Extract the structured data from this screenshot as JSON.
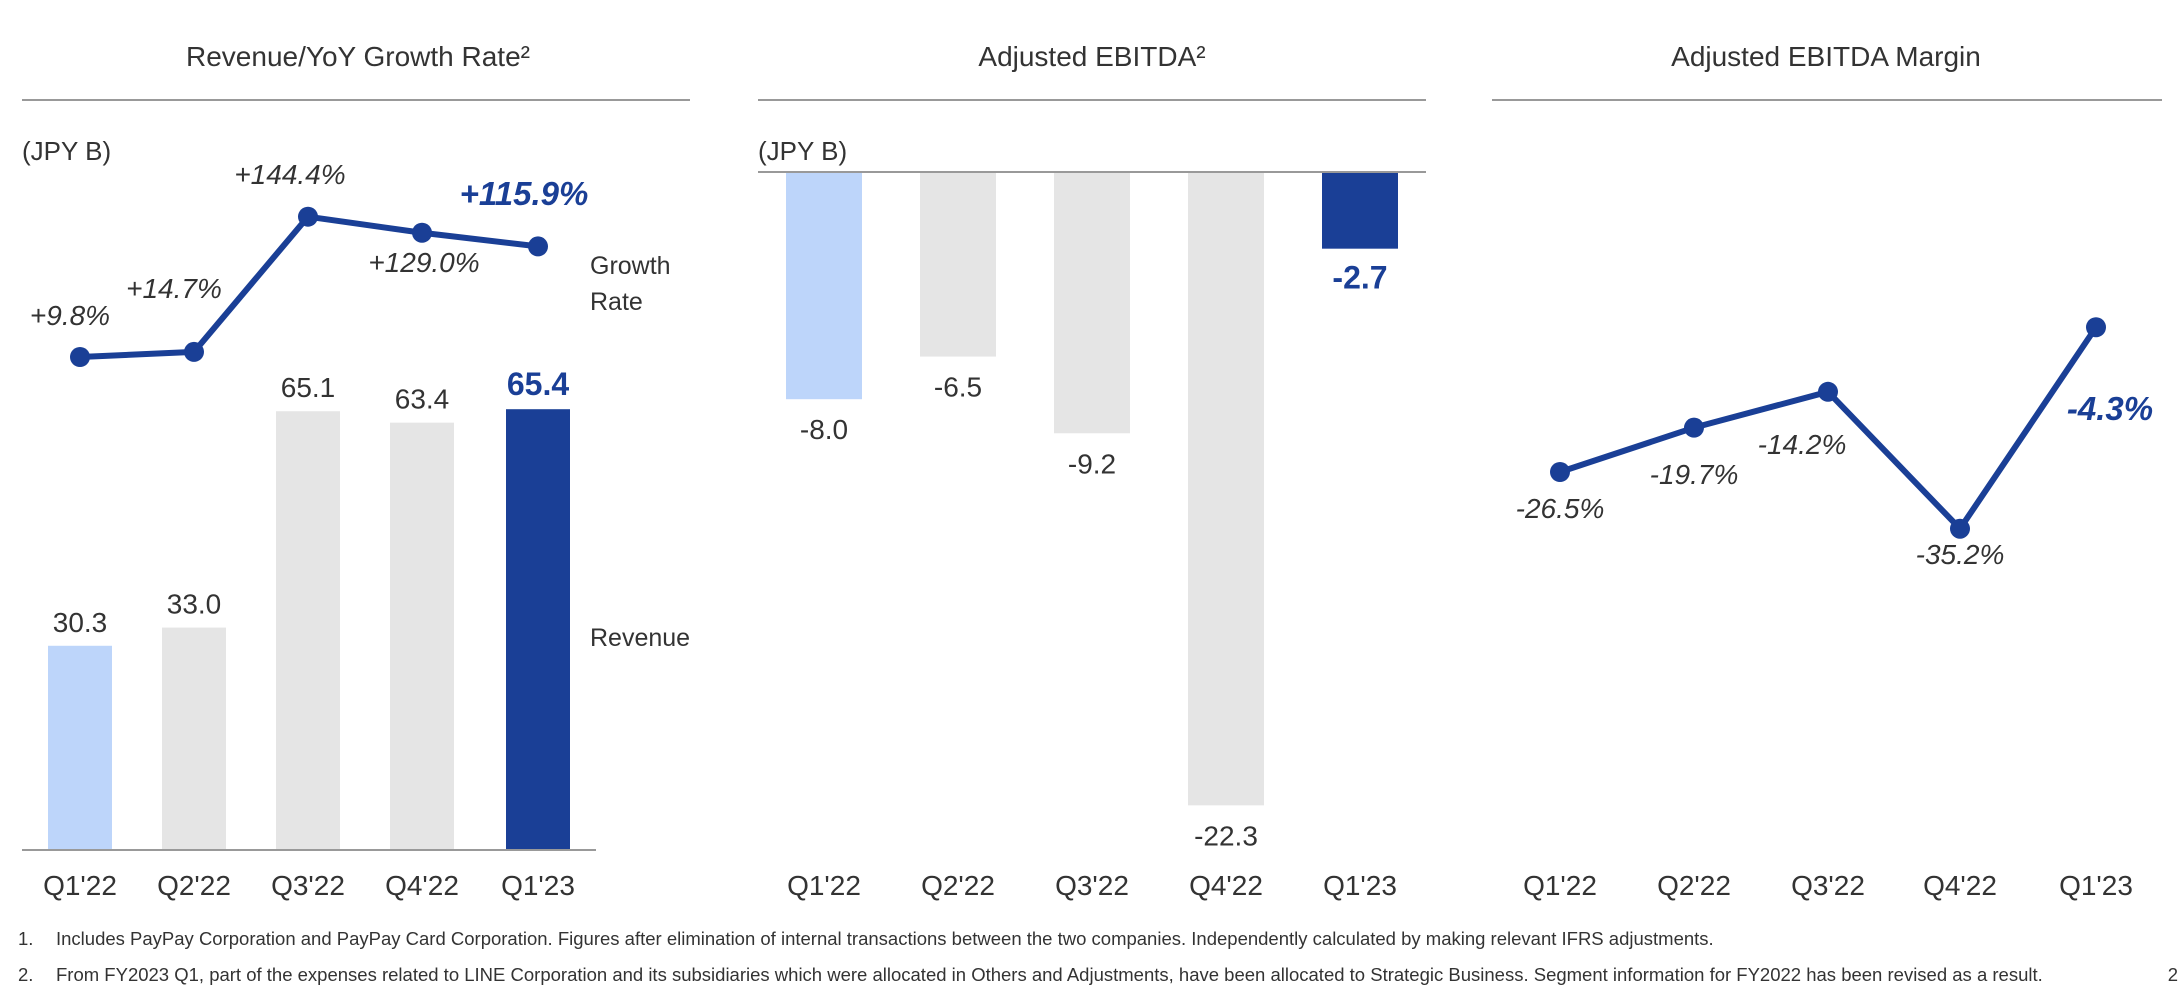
{
  "colors": {
    "highlight": "#1a3f96",
    "prior_year": "#bdd5fa",
    "other": "#e5e5e5",
    "text": "#333333",
    "rule": "#999999"
  },
  "chart_data": [
    {
      "type": "bar",
      "title": "Revenue/YoY Growth Rate²",
      "unit_label": "(JPY B)",
      "categories": [
        "Q1'22",
        "Q2'22",
        "Q3'22",
        "Q4'22",
        "Q1'23"
      ],
      "series": [
        {
          "name": "Revenue",
          "values": [
            30.3,
            33.0,
            65.1,
            63.4,
            65.4
          ],
          "labels": [
            "30.3",
            "33.0",
            "65.1",
            "63.4",
            "65.4"
          ]
        }
      ],
      "line_series": {
        "name": "Growth Rate",
        "values": [
          9.8,
          14.7,
          144.4,
          129.0,
          115.9
        ],
        "labels": [
          "+9.8%",
          "+14.7%",
          "+144.4%",
          "+129.0%",
          "+115.9%"
        ]
      },
      "legend_right": [
        "Growth",
        "Rate",
        "Revenue"
      ]
    },
    {
      "type": "bar",
      "title": "Adjusted EBITDA²",
      "unit_label": "(JPY B)",
      "categories": [
        "Q1'22",
        "Q2'22",
        "Q3'22",
        "Q4'22",
        "Q1'23"
      ],
      "series": [
        {
          "values": [
            -8.0,
            -6.5,
            -9.2,
            -22.3,
            -2.7
          ],
          "labels": [
            "-8.0",
            "-6.5",
            "-9.2",
            "-22.3",
            "-2.7"
          ]
        }
      ]
    },
    {
      "type": "line",
      "title": "Adjusted EBITDA Margin",
      "categories": [
        "Q1'22",
        "Q2'22",
        "Q3'22",
        "Q4'22",
        "Q1'23"
      ],
      "series": [
        {
          "values": [
            -26.5,
            -19.7,
            -14.2,
            -35.2,
            -4.3
          ],
          "labels": [
            "-26.5%",
            "-19.7%",
            "-14.2%",
            "-35.2%",
            "-4.3%"
          ]
        }
      ]
    }
  ],
  "footnotes": [
    {
      "num": "1.",
      "text": "Includes PayPay Corporation and PayPay Card Corporation. Figures after elimination of internal transactions between the two companies. Independently calculated by making relevant IFRS adjustments."
    },
    {
      "num": "2.",
      "text": "From FY2023 Q1, part of the expenses related to LINE Corporation and its subsidiaries which were allocated in Others and Adjustments, have been allocated to Strategic Business. Segment information for FY2022 has been revised as a result."
    }
  ],
  "page_number": "2"
}
